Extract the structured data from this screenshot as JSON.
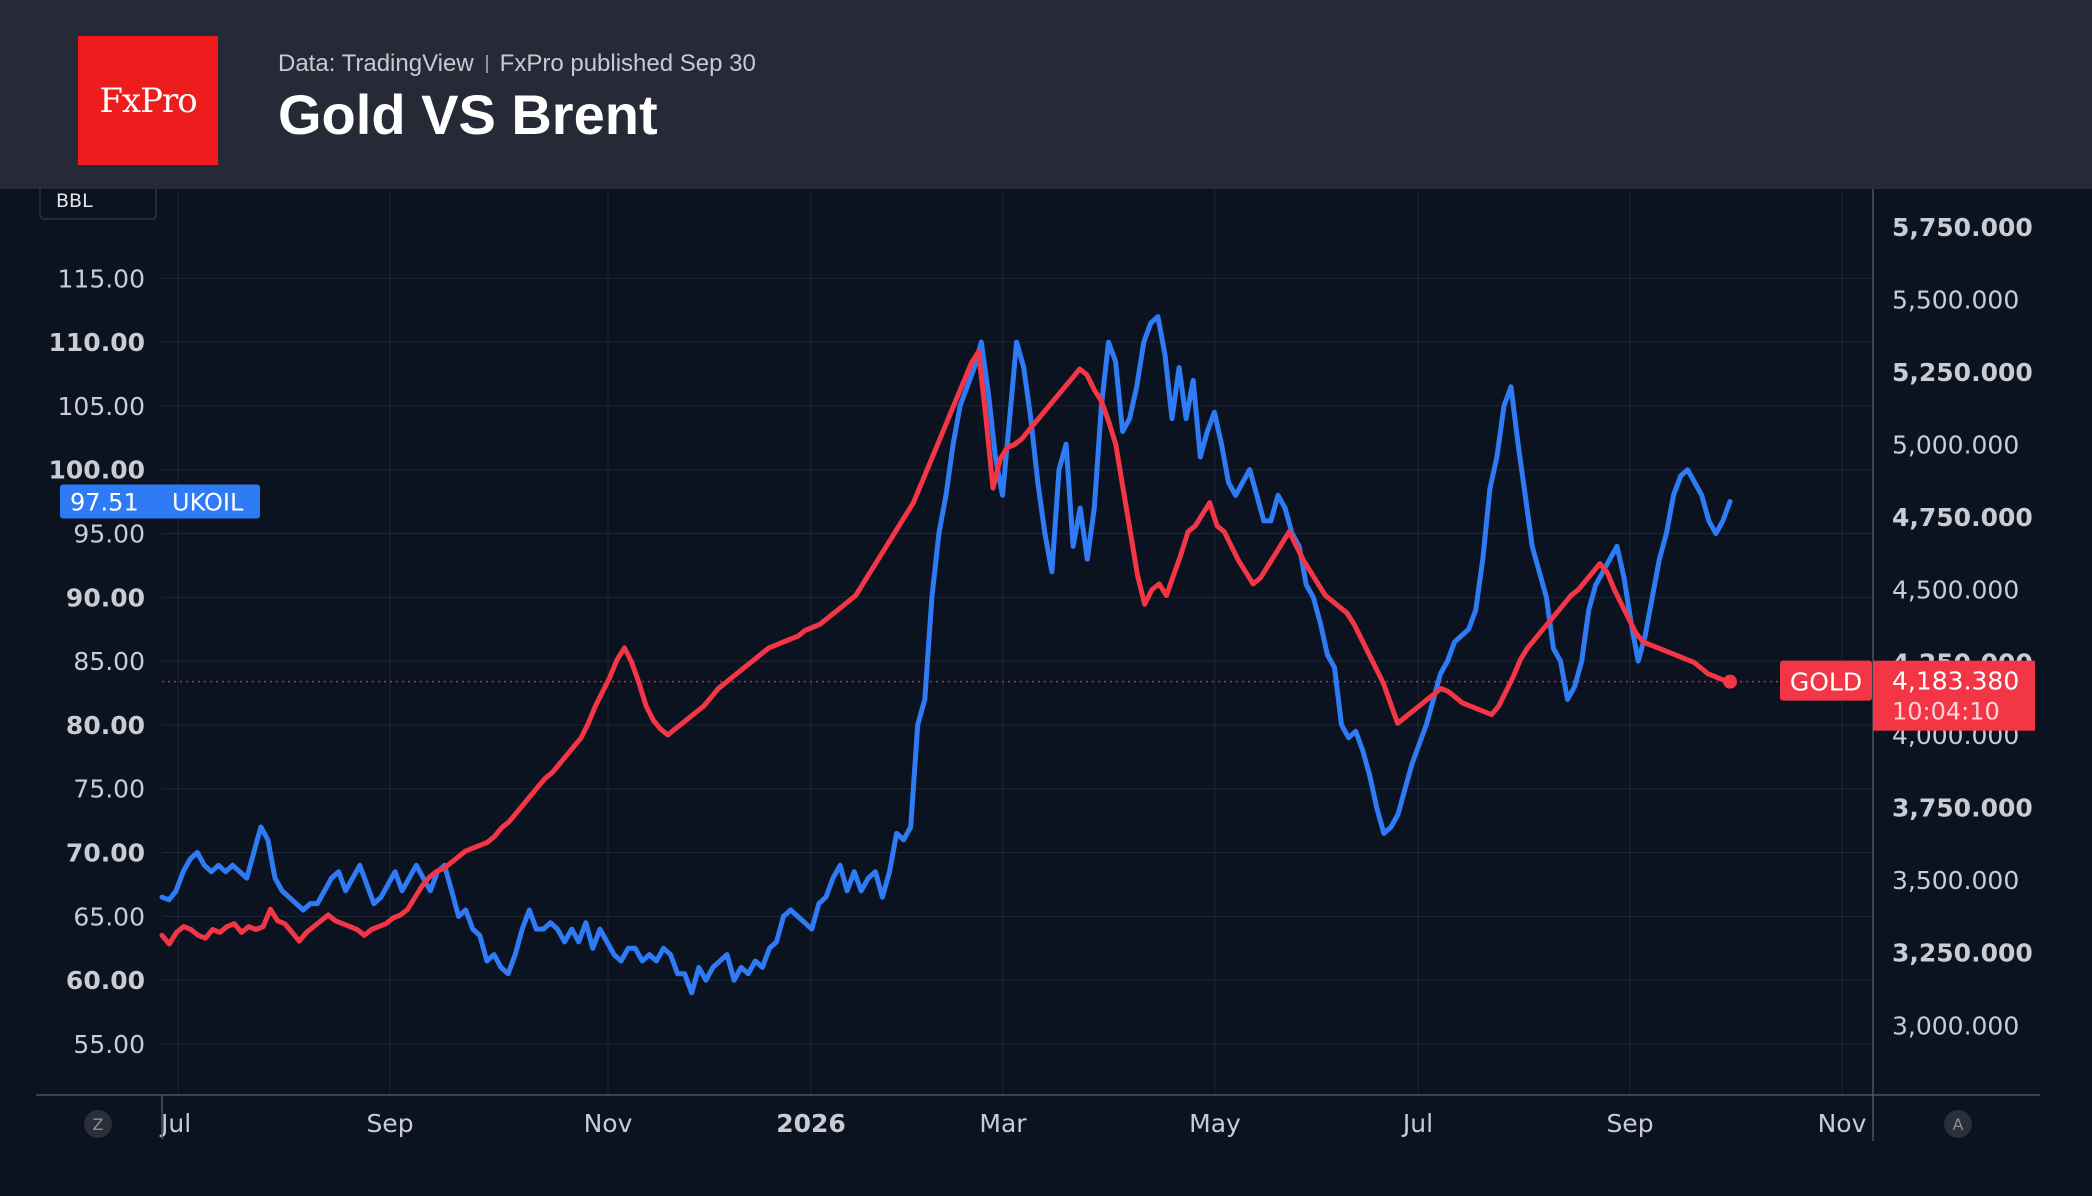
{
  "header": {
    "brand": "FxPro",
    "source": "Data: TradingView",
    "published": "FxPro published Sep 30",
    "title": "Gold VS Brent"
  },
  "colors": {
    "background": "#0b1220",
    "header_bg": "#262a36",
    "brand_red": "#ee1c1c",
    "ukoil": "#2f7bf5",
    "gold": "#f23645",
    "grid": "#1e2736",
    "axis_text": "#c9ccd3"
  },
  "chart_data": {
    "type": "line",
    "title": "Gold VS Brent",
    "left_axis": {
      "unit_label": "BBL",
      "range": [
        51,
        122
      ],
      "ticks": [
        "55.00",
        "60.00",
        "65.00",
        "70.00",
        "75.00",
        "80.00",
        "85.00",
        "90.00",
        "95.00",
        "100.00",
        "105.00",
        "110.00",
        "115.00"
      ]
    },
    "right_axis": {
      "range": [
        2760,
        5880
      ],
      "ticks": [
        "3,000.000",
        "3,250.000",
        "3,500.000",
        "3,750.000",
        "4,000.000",
        "4,250.000",
        "4,500.000",
        "4,750.000",
        "5,000.000",
        "5,250.000",
        "5,500.000",
        "5,750.000"
      ]
    },
    "x_axis": {
      "ticks": [
        "Jul",
        "Sep",
        "Nov",
        "2026",
        "Mar",
        "May",
        "Jul",
        "Sep",
        "Nov"
      ]
    },
    "grid": true,
    "corner_badges": [
      "Z",
      "A"
    ],
    "series": [
      {
        "name": "UKOIL",
        "axis": "left",
        "last_value": "97.51",
        "values": [
          66.5,
          66.3,
          67.0,
          68.5,
          69.5,
          70.0,
          69.0,
          68.5,
          69.0,
          68.5,
          69.0,
          68.5,
          68.0,
          70.0,
          72.0,
          71.0,
          68.0,
          67.0,
          66.5,
          66.0,
          65.5,
          66.0,
          66.0,
          67.0,
          68.0,
          68.5,
          67.0,
          68.0,
          69.0,
          67.5,
          66.0,
          66.5,
          67.5,
          68.5,
          67.0,
          68.0,
          69.0,
          68.0,
          67.0,
          68.5,
          69.0,
          67.0,
          65.0,
          65.5,
          64.0,
          63.5,
          61.5,
          62.0,
          61.0,
          60.5,
          62.0,
          64.0,
          65.5,
          64.0,
          64.0,
          64.5,
          64.0,
          63.0,
          64.0,
          63.0,
          64.5,
          62.5,
          64.0,
          63.0,
          62.0,
          61.5,
          62.5,
          62.5,
          61.5,
          62.0,
          61.5,
          62.5,
          62.0,
          60.5,
          60.5,
          59.0,
          61.0,
          60.0,
          61.0,
          61.5,
          62.0,
          60.0,
          61.0,
          60.5,
          61.5,
          61.0,
          62.5,
          63.0,
          65.0,
          65.5,
          65.0,
          64.5,
          64.0,
          66.0,
          66.5,
          68.0,
          69.0,
          67.0,
          68.5,
          67.0,
          68.0,
          68.5,
          66.5,
          68.5,
          71.5,
          71.0,
          72.0,
          80.0,
          82.0,
          90.0,
          95.0,
          98.0,
          102.0,
          105.0,
          106.5,
          108.0,
          110.0,
          106.0,
          101.0,
          98.0,
          104.0,
          110.0,
          108.0,
          104.0,
          99.0,
          95.0,
          92.0,
          100.0,
          102.0,
          94.0,
          97.0,
          93.0,
          97.0,
          105.0,
          110.0,
          108.5,
          103.0,
          104.0,
          106.5,
          110.0,
          111.5,
          112.0,
          109.0,
          104.0,
          108.0,
          104.0,
          107.0,
          101.0,
          103.0,
          104.5,
          102.0,
          99.0,
          98.0,
          99.0,
          100.0,
          98.0,
          96.0,
          96.0,
          98.0,
          97.0,
          95.0,
          94.0,
          91.0,
          90.0,
          88.0,
          85.5,
          84.5,
          80.0,
          79.0,
          79.5,
          78.0,
          76.0,
          73.5,
          71.5,
          72.0,
          73.0,
          75.0,
          77.0,
          78.5,
          80.0,
          82.0,
          84.0,
          85.0,
          86.5,
          87.0,
          87.5,
          89.0,
          93.0,
          98.5,
          101.0,
          105.0,
          106.5,
          102.0,
          98.0,
          94.0,
          92.0,
          90.0,
          86.0,
          85.0,
          82.0,
          83.0,
          85.0,
          89.0,
          91.0,
          92.0,
          93.0,
          94.0,
          91.5,
          88.0,
          85.0,
          87.0,
          90.0,
          93.0,
          95.0,
          98.0,
          99.5,
          100.0,
          99.0,
          98.0,
          96.0,
          95.0,
          96.0,
          97.51
        ]
      },
      {
        "name": "GOLD",
        "axis": "right",
        "last_value": "4,183.380",
        "countdown": "10:04:10",
        "values": [
          3310,
          3280,
          3320,
          3340,
          3330,
          3310,
          3300,
          3330,
          3320,
          3340,
          3350,
          3320,
          3340,
          3330,
          3340,
          3400,
          3360,
          3350,
          3320,
          3290,
          3320,
          3340,
          3360,
          3380,
          3360,
          3350,
          3340,
          3330,
          3310,
          3330,
          3340,
          3350,
          3370,
          3380,
          3400,
          3440,
          3480,
          3510,
          3530,
          3540,
          3560,
          3580,
          3600,
          3610,
          3620,
          3630,
          3650,
          3680,
          3700,
          3730,
          3760,
          3790,
          3820,
          3850,
          3870,
          3900,
          3930,
          3960,
          3990,
          4040,
          4100,
          4150,
          4200,
          4260,
          4300,
          4250,
          4180,
          4100,
          4050,
          4020,
          4000,
          4020,
          4040,
          4060,
          4080,
          4100,
          4130,
          4160,
          4180,
          4200,
          4220,
          4240,
          4260,
          4280,
          4300,
          4310,
          4320,
          4330,
          4340,
          4360,
          4370,
          4380,
          4400,
          4420,
          4440,
          4460,
          4480,
          4520,
          4560,
          4600,
          4640,
          4680,
          4720,
          4760,
          4800,
          4860,
          4920,
          4980,
          5040,
          5100,
          5160,
          5220,
          5280,
          5320,
          5100,
          4850,
          4950,
          4990,
          5000,
          5020,
          5050,
          5080,
          5110,
          5140,
          5170,
          5200,
          5230,
          5260,
          5240,
          5190,
          5150,
          5080,
          5000,
          4850,
          4700,
          4550,
          4450,
          4500,
          4520,
          4480,
          4550,
          4620,
          4700,
          4720,
          4760,
          4800,
          4720,
          4700,
          4650,
          4600,
          4560,
          4520,
          4540,
          4580,
          4620,
          4660,
          4700,
          4650,
          4600,
          4560,
          4520,
          4480,
          4460,
          4440,
          4420,
          4380,
          4330,
          4280,
          4230,
          4180,
          4110,
          4040,
          4060,
          4080,
          4100,
          4120,
          4140,
          4160,
          4150,
          4130,
          4110,
          4100,
          4090,
          4080,
          4070,
          4100,
          4150,
          4200,
          4260,
          4300,
          4330,
          4360,
          4390,
          4420,
          4450,
          4480,
          4500,
          4530,
          4560,
          4590,
          4560,
          4500,
          4450,
          4400,
          4350,
          4320,
          4310,
          4300,
          4290,
          4280,
          4270,
          4260,
          4250,
          4230,
          4210,
          4200,
          4190,
          4183.38
        ]
      }
    ]
  }
}
